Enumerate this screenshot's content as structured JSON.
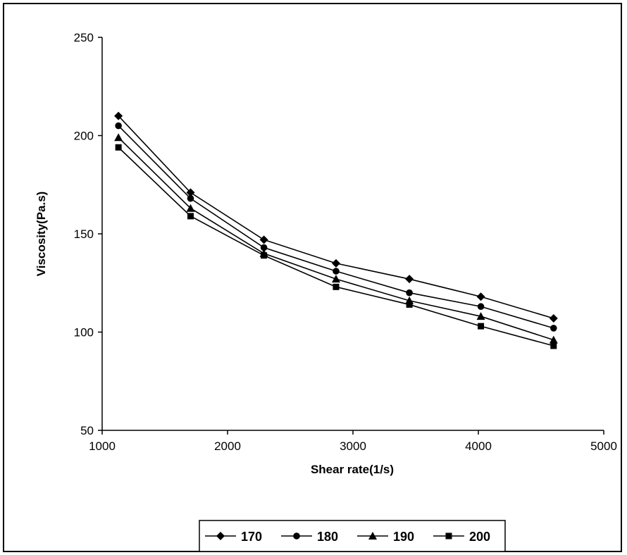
{
  "chart_data": {
    "type": "line",
    "title": "",
    "xlabel": "Shear rate(1/s)",
    "ylabel": "Viscosity(Pa.s)",
    "xlim": [
      1000,
      5000
    ],
    "ylim": [
      50,
      250
    ],
    "xticks": [
      1000,
      2000,
      3000,
      4000,
      5000
    ],
    "yticks": [
      50,
      100,
      150,
      200,
      250
    ],
    "grid": false,
    "legend_position": "bottom",
    "x": [
      1130,
      1705,
      2290,
      2865,
      3450,
      4020,
      4600
    ],
    "series": [
      {
        "name": "170",
        "marker": "diamond",
        "values": [
          210,
          171,
          147,
          135,
          127,
          118,
          107
        ]
      },
      {
        "name": "180",
        "marker": "circle",
        "values": [
          205,
          168,
          143,
          131,
          120,
          113,
          102
        ]
      },
      {
        "name": "190",
        "marker": "triangle",
        "values": [
          199,
          163,
          140,
          127,
          116,
          108,
          96
        ]
      },
      {
        "name": "200",
        "marker": "square",
        "values": [
          194,
          159,
          139,
          123,
          114,
          103,
          93
        ]
      }
    ],
    "colors": {
      "line": "#000000",
      "marker": "#000000",
      "background": "#ffffff"
    }
  }
}
